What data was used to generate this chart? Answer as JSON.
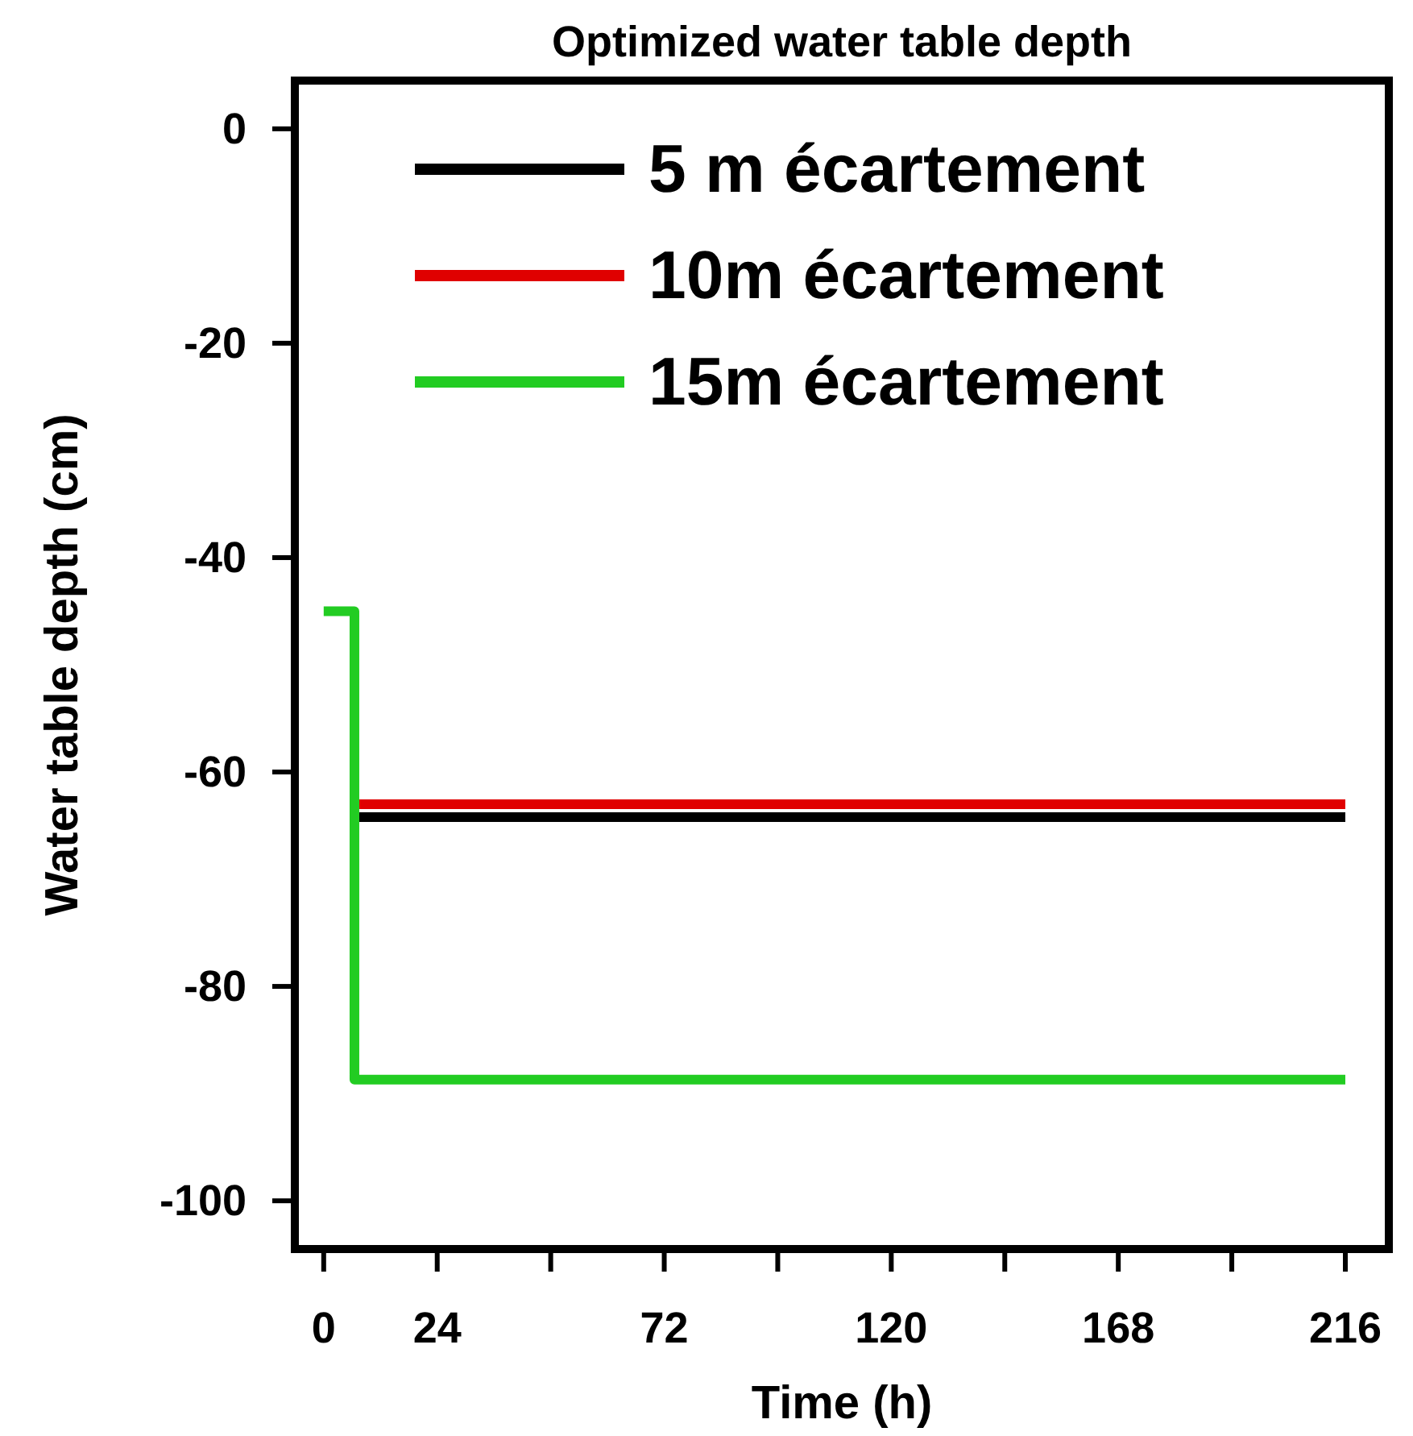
{
  "chart_data": {
    "type": "line",
    "title": "Optimized water table depth",
    "xlabel": "Time (h)",
    "ylabel": "Water table depth (cm)",
    "xlim": [
      -6.1,
      225.2
    ],
    "ylim": [
      -104.5,
      4.5
    ],
    "xticks": [
      0,
      24,
      {
        "value": 48,
        "label": null
      },
      72,
      {
        "value": 96,
        "label": null
      },
      120,
      {
        "value": 144,
        "label": null
      },
      168,
      {
        "value": 192,
        "label": null
      },
      216
    ],
    "yticks": [
      -100,
      -80,
      -60,
      -40,
      -20,
      0
    ],
    "legend": "top",
    "grid": false,
    "marker": "none",
    "line_style": "solid",
    "series": [
      {
        "name": "5 m écartement",
        "color": "#000000",
        "x": [
          7.5,
          216
        ],
        "values": [
          -64.2,
          -64.2
        ]
      },
      {
        "name": "10m écartement",
        "color": "#e00000",
        "x": [
          7.5,
          216
        ],
        "values": [
          -63,
          -63
        ]
      },
      {
        "name": "15m écartement",
        "color": "#22cc22",
        "x": [
          0,
          6.5,
          6.5,
          216
        ],
        "values": [
          -45,
          -45,
          -88.7,
          -88.7
        ]
      }
    ]
  }
}
